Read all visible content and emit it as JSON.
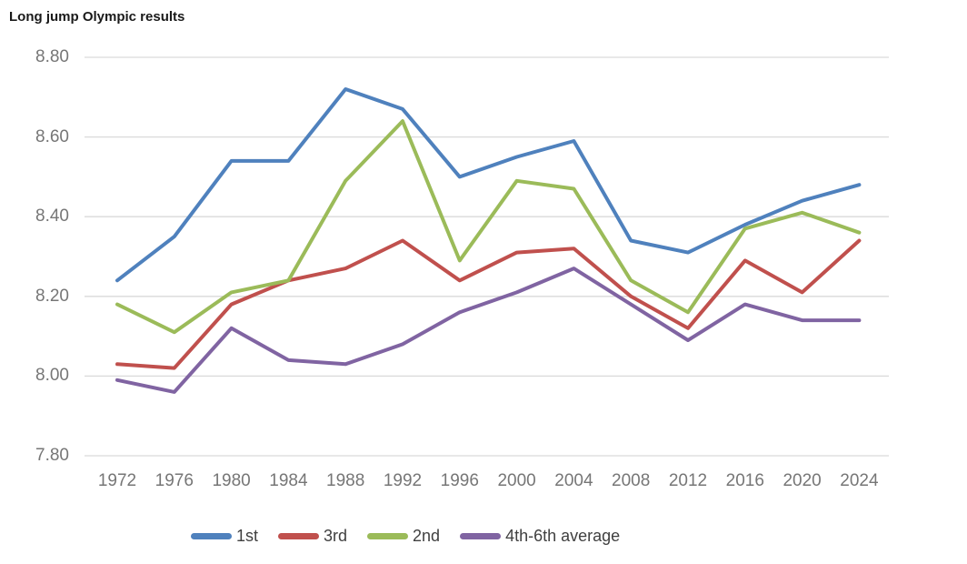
{
  "title": "Long jump Olympic results",
  "chart_data": {
    "type": "line",
    "title": "Long jump Olympic results",
    "categories": [
      "1972",
      "1976",
      "1980",
      "1984",
      "1988",
      "1992",
      "1996",
      "2000",
      "2004",
      "2008",
      "2012",
      "2016",
      "2020",
      "2024"
    ],
    "series": [
      {
        "name": "1st",
        "color": "#4F81BD",
        "values": [
          8.24,
          8.35,
          8.54,
          8.54,
          8.72,
          8.67,
          8.5,
          8.55,
          8.59,
          8.34,
          8.31,
          8.38,
          8.44,
          8.48
        ]
      },
      {
        "name": "3rd",
        "color": "#C0504D",
        "values": [
          8.03,
          8.02,
          8.18,
          8.24,
          8.27,
          8.34,
          8.24,
          8.31,
          8.32,
          8.2,
          8.12,
          8.29,
          8.21,
          8.34
        ]
      },
      {
        "name": "2nd",
        "color": "#9BBB59",
        "values": [
          8.18,
          8.11,
          8.21,
          8.24,
          8.49,
          8.64,
          8.29,
          8.49,
          8.47,
          8.24,
          8.16,
          8.37,
          8.41,
          8.36
        ]
      },
      {
        "name": "4th-6th average",
        "color": "#8064A2",
        "values": [
          7.99,
          7.96,
          8.12,
          8.04,
          8.03,
          8.08,
          8.16,
          8.21,
          8.27,
          8.18,
          8.09,
          8.18,
          8.14,
          8.14
        ]
      }
    ],
    "xlabel": "",
    "ylabel": "",
    "yticks": [
      "8.80",
      "8.60",
      "8.40",
      "8.20",
      "8.00",
      "7.80"
    ],
    "ylim": [
      7.8,
      8.8
    ],
    "grid": true,
    "legend_position": "bottom"
  },
  "colors": {
    "background": "#FFFFFF",
    "gridline": "#D9D9D9",
    "axis_label": "#767676",
    "legend_label": "#404040",
    "title": "#1A1A1A"
  }
}
